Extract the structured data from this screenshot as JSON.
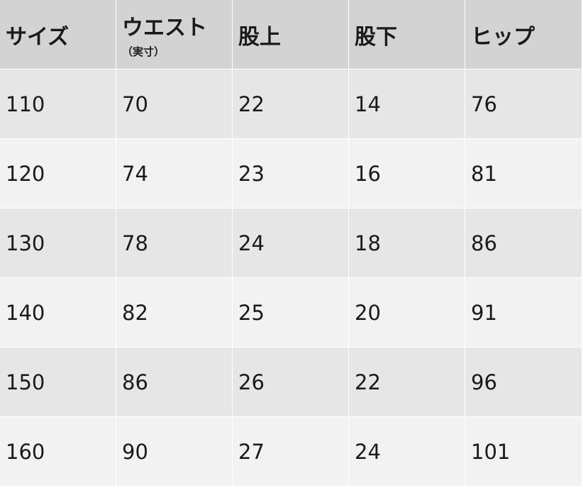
{
  "table": {
    "header": [
      {
        "label": "サイズ"
      },
      {
        "label": "ウエスト",
        "note": "（実寸）"
      },
      {
        "label": "股上"
      },
      {
        "label": "股下"
      },
      {
        "label": "ヒップ"
      }
    ],
    "rows": [
      [
        110,
        70,
        22,
        14,
        76
      ],
      [
        120,
        74,
        23,
        16,
        81
      ],
      [
        130,
        78,
        24,
        18,
        86
      ],
      [
        140,
        82,
        25,
        20,
        91
      ],
      [
        150,
        86,
        26,
        22,
        96
      ],
      [
        160,
        90,
        27,
        24,
        101
      ]
    ]
  }
}
